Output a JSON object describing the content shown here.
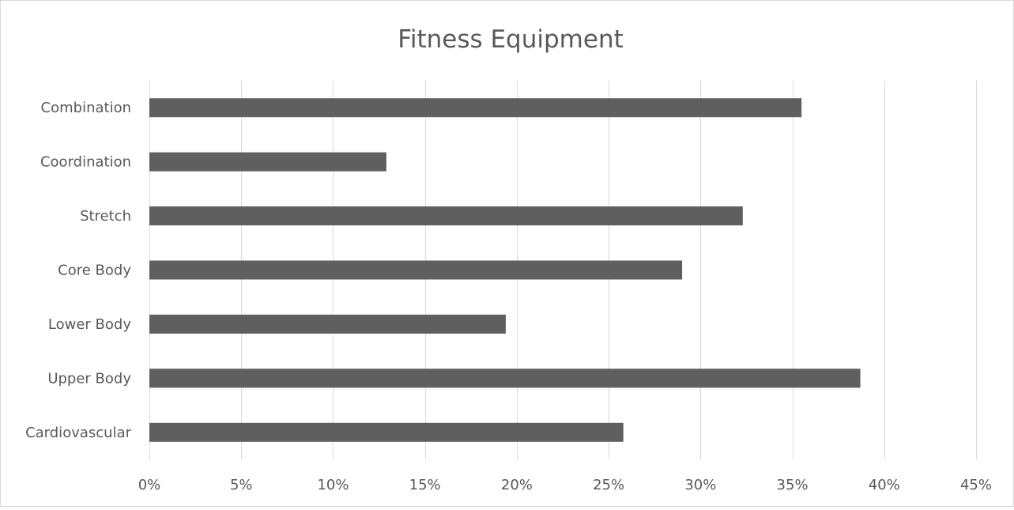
{
  "chart_data": {
    "type": "bar",
    "orientation": "horizontal",
    "title": "Fitness Equipment",
    "categories": [
      "Cardiovascular",
      "Upper Body",
      "Lower Body",
      "Core Body",
      "Stretch",
      "Coordination",
      "Combination"
    ],
    "values": [
      0.258,
      0.387,
      0.194,
      0.29,
      0.323,
      0.129,
      0.355
    ],
    "xlim": [
      0,
      0.45
    ],
    "ticks": [
      0,
      0.05,
      0.1,
      0.15,
      0.2,
      0.25,
      0.3,
      0.35,
      0.4,
      0.45
    ],
    "tick_labels": [
      "0%",
      "5%",
      "10%",
      "15%",
      "20%",
      "25%",
      "30%",
      "35%",
      "40%",
      "45%"
    ],
    "grid": true,
    "legend": "none",
    "colors": {
      "bar": "#5f5f5f",
      "grid": "#d9d9d9",
      "text": "#595959",
      "border": "#d9d9d9"
    }
  }
}
